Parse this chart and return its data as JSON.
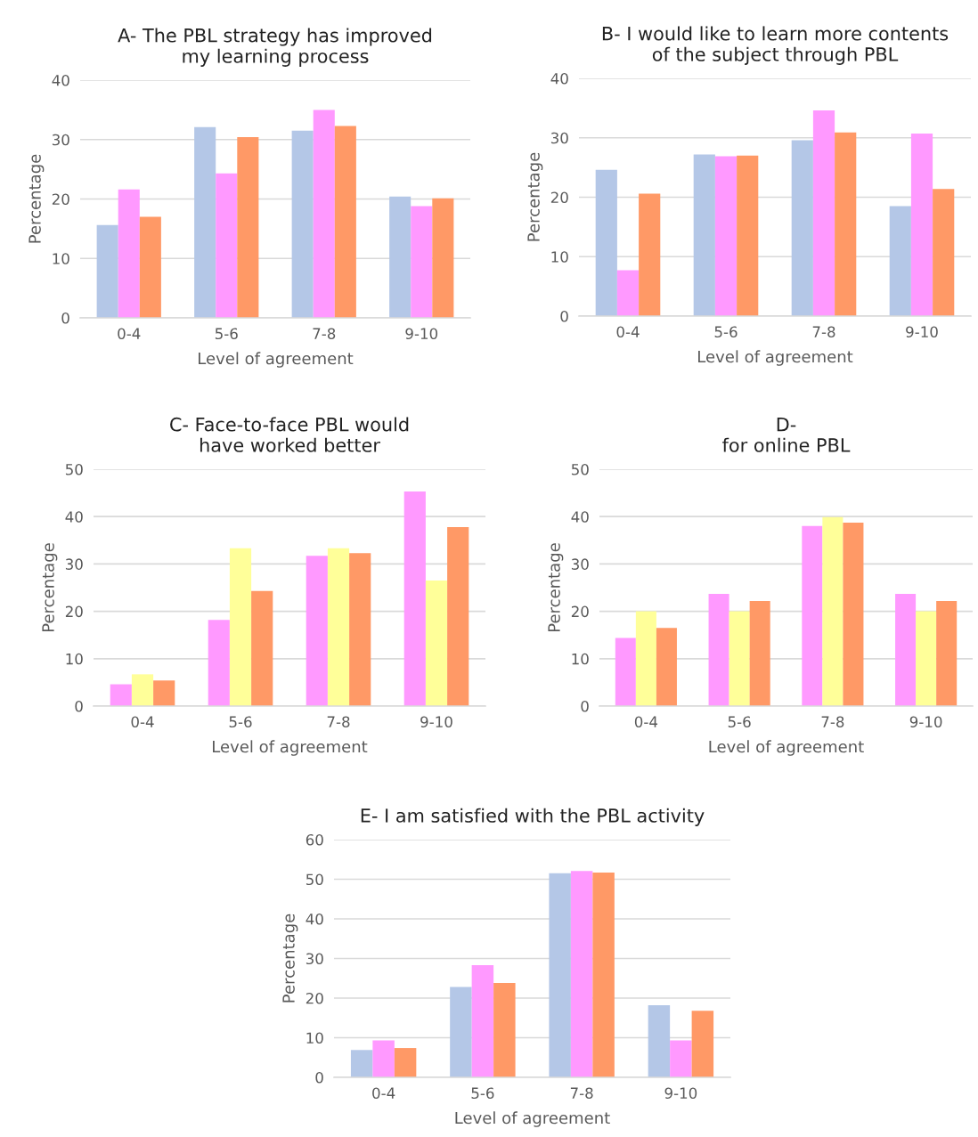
{
  "chart_data": [
    {
      "type": "bar",
      "title": "A- The PBL strategy has improved\nmy learning process",
      "xlabel": "Level of agreement",
      "ylabel": "Percentage",
      "categories": [
        "0-4",
        "5-6",
        "7-8",
        "9-10"
      ],
      "ylim": [
        0,
        40
      ],
      "yticks": [
        0,
        10,
        20,
        30,
        40
      ],
      "grid": "y",
      "legend": false,
      "series": [
        {
          "color": "#b4c7e7",
          "values": [
            15.6,
            32.1,
            31.5,
            20.4
          ]
        },
        {
          "color": "#ff99ff",
          "values": [
            21.6,
            24.3,
            35.0,
            18.8
          ]
        },
        {
          "color": "#ff9966",
          "values": [
            17.0,
            30.4,
            32.3,
            20.1
          ]
        }
      ]
    },
    {
      "type": "bar",
      "title": "B- I would like to learn more contents\nof the subject through PBL",
      "xlabel": "Level of agreement",
      "ylabel": "Percentage",
      "categories": [
        "0-4",
        "5-6",
        "7-8",
        "9-10"
      ],
      "ylim": [
        0,
        40
      ],
      "yticks": [
        0,
        10,
        20,
        30,
        40
      ],
      "grid": "y",
      "legend": false,
      "series": [
        {
          "color": "#b4c7e7",
          "values": [
            24.6,
            27.2,
            29.6,
            18.5
          ]
        },
        {
          "color": "#ff99ff",
          "values": [
            7.7,
            26.9,
            34.6,
            30.7
          ]
        },
        {
          "color": "#ff9966",
          "values": [
            20.6,
            27.0,
            30.9,
            21.4
          ]
        }
      ]
    },
    {
      "type": "bar",
      "title": "C- Face-to-face PBL would\nhave worked better",
      "xlabel": "Level of agreement",
      "ylabel": "Percentage",
      "categories": [
        "0-4",
        "5-6",
        "7-8",
        "9-10"
      ],
      "ylim": [
        0,
        50
      ],
      "yticks": [
        0,
        10,
        20,
        30,
        40,
        50
      ],
      "grid": "y",
      "legend": false,
      "series": [
        {
          "color": "#ff99ff",
          "values": [
            4.6,
            18.2,
            31.7,
            45.3
          ]
        },
        {
          "color": "#ffff99",
          "values": [
            6.7,
            33.3,
            33.3,
            26.5
          ]
        },
        {
          "color": "#ff9966",
          "values": [
            5.4,
            24.3,
            32.3,
            37.8
          ]
        }
      ]
    },
    {
      "type": "bar",
      "title": "D-\nfor online PBL",
      "xlabel": "Level of agreement",
      "ylabel": "Percentage",
      "categories": [
        "0-4",
        "5-6",
        "7-8",
        "9-10"
      ],
      "ylim": [
        0,
        50
      ],
      "yticks": [
        0,
        10,
        20,
        30,
        40,
        50
      ],
      "grid": "y",
      "legend": false,
      "series": [
        {
          "color": "#ff99ff",
          "values": [
            14.4,
            23.7,
            38.0,
            23.7
          ]
        },
        {
          "color": "#ffff99",
          "values": [
            20.0,
            20.0,
            39.9,
            20.0
          ]
        },
        {
          "color": "#ff9966",
          "values": [
            16.5,
            22.2,
            38.7,
            22.2
          ]
        }
      ]
    },
    {
      "type": "bar",
      "title": "E- I am satisfied with the PBL activity",
      "xlabel": "Level of agreement",
      "ylabel": "Percentage",
      "categories": [
        "0-4",
        "5-6",
        "7-8",
        "9-10"
      ],
      "ylim": [
        0,
        60
      ],
      "yticks": [
        0,
        10,
        20,
        30,
        40,
        50,
        60
      ],
      "grid": "y",
      "legend": false,
      "series": [
        {
          "color": "#b4c7e7",
          "values": [
            6.9,
            22.8,
            51.5,
            18.2
          ]
        },
        {
          "color": "#ff99ff",
          "values": [
            9.3,
            28.3,
            52.1,
            9.3
          ]
        },
        {
          "color": "#ff9966",
          "values": [
            7.4,
            23.8,
            51.7,
            16.8
          ]
        }
      ]
    }
  ]
}
